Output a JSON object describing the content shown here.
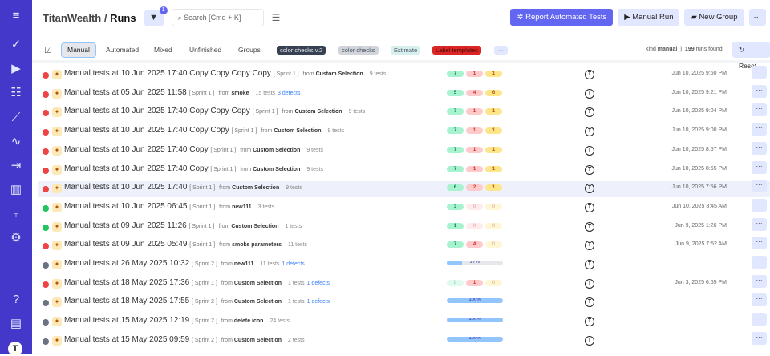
{
  "sidebar": {
    "items": [
      "menu-icon",
      "check-icon",
      "play-icon",
      "list-check-icon",
      "trend-icon",
      "pulse-icon",
      "import-icon",
      "bar-chart-icon",
      "branch-icon",
      "gear-icon"
    ],
    "bottom": [
      "help-icon",
      "folder-icon"
    ],
    "avatar": "T",
    "accent": "#4338ca"
  },
  "header": {
    "project": "TitanWealth",
    "sep": "/",
    "page": "Runs",
    "filter_count": "1",
    "search_placeholder": "Search [Cmd + K]",
    "report_button": "Report Automated Tests",
    "manual_run_button": "Manual Run",
    "new_group_button": "New Group",
    "more": "···"
  },
  "tabs": [
    "Manual",
    "Automated",
    "Mixed",
    "Unfinished",
    "Groups"
  ],
  "labels": [
    {
      "text": "color checks v.2",
      "bg": "#374151",
      "fg": "#e5e7eb"
    },
    {
      "text": "color checks",
      "bg": "#d1d5db",
      "fg": "#4b5563"
    },
    {
      "text": "Estimate",
      "bg": "#d7f0ee",
      "fg": "#4b5563"
    },
    {
      "text": "Label templates",
      "bg": "#dc2626",
      "fg": "#450a0a"
    }
  ],
  "labels_more": "···",
  "summary": {
    "kind_label": "kind",
    "kind_value": "manual",
    "count": "199",
    "count_label": "runs found",
    "reset": "Reset"
  },
  "runs": [
    {
      "status": "failed",
      "title": "Manual tests at 10 Jun 2025 17:40 Copy Copy Copy Copy",
      "sprint": "[ Sprint 1 ]",
      "from": "Custom Selection",
      "tests": "9 tests",
      "defects": "",
      "passed": "7",
      "failed": "1",
      "skipped": "1",
      "date": "Jun 10, 2025 9:50 PM"
    },
    {
      "status": "failed",
      "title": "Manual tests at 05 Jun 2025 11:58",
      "sprint": "[ Sprint 1 ]",
      "from": "smoke",
      "tests": "15 tests",
      "defects": "3 defects",
      "passed": "5",
      "failed": "4",
      "skipped": "6",
      "date": "Jun 10, 2025 9:21 PM"
    },
    {
      "status": "failed",
      "title": "Manual tests at 10 Jun 2025 17:40 Copy Copy Copy",
      "sprint": "[ Sprint 1 ]",
      "from": "Custom Selection",
      "tests": "9 tests",
      "defects": "",
      "passed": "7",
      "failed": "1",
      "skipped": "1",
      "date": "Jun 10, 2025 9:04 PM"
    },
    {
      "status": "failed",
      "title": "Manual tests at 10 Jun 2025 17:40 Copy Copy",
      "sprint": "[ Sprint 1 ]",
      "from": "Custom Selection",
      "tests": "9 tests",
      "defects": "",
      "passed": "7",
      "failed": "1",
      "skipped": "1",
      "date": "Jun 10, 2025 9:00 PM"
    },
    {
      "status": "failed",
      "title": "Manual tests at 10 Jun 2025 17:40 Copy",
      "sprint": "[ Sprint 1 ]",
      "from": "Custom Selection",
      "tests": "9 tests",
      "defects": "",
      "passed": "7",
      "failed": "1",
      "skipped": "1",
      "date": "Jun 10, 2025 8:57 PM"
    },
    {
      "status": "failed",
      "title": "Manual tests at 10 Jun 2025 17:40 Copy",
      "sprint": "[ Sprint 1 ]",
      "from": "Custom Selection",
      "tests": "9 tests",
      "defects": "",
      "passed": "7",
      "failed": "1",
      "skipped": "1",
      "date": "Jun 10, 2025 8:55 PM"
    },
    {
      "status": "failed",
      "title": "Manual tests at 10 Jun 2025 17:40",
      "sprint": "[ Sprint 1 ]",
      "from": "Custom Selection",
      "tests": "9 tests",
      "defects": "",
      "passed": "6",
      "failed": "2",
      "skipped": "1",
      "date": "Jun 10, 2025 7:56 PM",
      "highlight": true
    },
    {
      "status": "passed",
      "title": "Manual tests at 10 Jun 2025 06:45",
      "sprint": "[ Sprint 1 ]",
      "from": "new111",
      "tests": "3 tests",
      "defects": "",
      "passed": "3",
      "failed": "0",
      "skipped": "0",
      "date": "Jun 10, 2025 8:45 AM"
    },
    {
      "status": "passed",
      "title": "Manual tests at 09 Jun 2025 11:26",
      "sprint": "[ Sprint 1 ]",
      "from": "Custom Selection",
      "tests": "1 tests",
      "defects": "",
      "passed": "1",
      "failed": "0",
      "skipped": "0",
      "date": "Jun 9, 2025 1:26 PM"
    },
    {
      "status": "failed",
      "title": "Manual tests at 09 Jun 2025 05:49",
      "sprint": "[ Sprint 1 ]",
      "from": "smoke parameters",
      "tests": "11 tests",
      "defects": "",
      "passed": "7",
      "failed": "4",
      "skipped": "0",
      "date": "Jun 9, 2025 7:52 AM"
    },
    {
      "status": "in-progress",
      "title": "Manual tests at 26 May 2025 10:32",
      "sprint": "[ Sprint 2 ]",
      "from": "new111",
      "tests": "11 tests",
      "defects": "1 defects",
      "progress": "27%",
      "date": ""
    },
    {
      "status": "failed",
      "title": "Manual tests at 18 May 2025 17:36",
      "sprint": "[ Sprint 1 ]",
      "from": "Custom Selection",
      "tests": "1 tests",
      "defects": "1 defects",
      "passed": "0",
      "failed": "1",
      "skipped": "0",
      "date": "Jun 3, 2025 6:55 PM"
    },
    {
      "status": "in-progress",
      "title": "Manual tests at 18 May 2025 17:55",
      "sprint": "[ Sprint 2 ]",
      "from": "Custom Selection",
      "tests": "1 tests",
      "defects": "1 defects",
      "progress": "100%",
      "date": ""
    },
    {
      "status": "in-progress",
      "title": "Manual tests at 15 May 2025 12:19",
      "sprint": "[ Sprint 2 ]",
      "from": "delete icon",
      "tests": "24 tests",
      "defects": "",
      "progress": "100%",
      "date": ""
    },
    {
      "status": "in-progress",
      "title": "Manual tests at 15 May 2025 09:59",
      "sprint": "[ Sprint 2 ]",
      "from": "Custom Selection",
      "tests": "2 tests",
      "defects": "",
      "progress": "100%",
      "date": ""
    }
  ],
  "row_from_label": "from",
  "row_avatar": "T",
  "row_more": "···",
  "colors": {
    "failed": "#ef4444",
    "passed": "#22c55e",
    "in-progress": "#6b7280",
    "pass_bg": "#a7f3d0",
    "pass_fg": "#047857",
    "fail_bg": "#fecaca",
    "fail_fg": "#dc2626",
    "skip_bg": "#fde68a",
    "skip_fg": "#b45309"
  }
}
